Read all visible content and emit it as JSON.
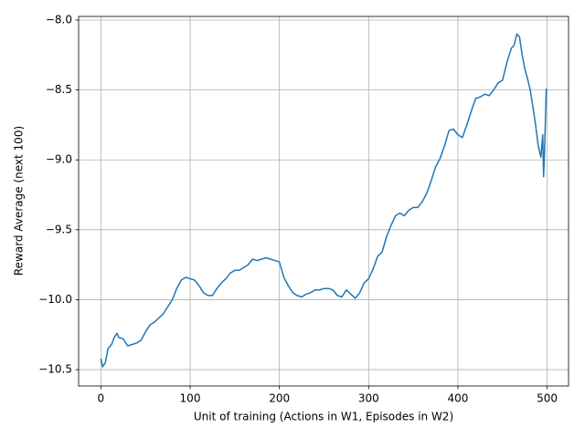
{
  "chart_data": {
    "type": "line",
    "xlabel": "Unit of training (Actions in W1, Episodes in W2)",
    "ylabel": "Reward Average (next 100)",
    "x": [
      0,
      2,
      5,
      8,
      12,
      15,
      18,
      20,
      25,
      28,
      30,
      35,
      40,
      45,
      50,
      55,
      60,
      65,
      70,
      75,
      80,
      85,
      90,
      95,
      100,
      105,
      110,
      115,
      120,
      125,
      130,
      135,
      140,
      145,
      150,
      155,
      160,
      165,
      170,
      175,
      180,
      185,
      190,
      195,
      200,
      205,
      210,
      215,
      220,
      225,
      230,
      235,
      240,
      245,
      250,
      255,
      260,
      265,
      270,
      275,
      280,
      285,
      290,
      295,
      300,
      305,
      310,
      315,
      320,
      325,
      330,
      335,
      340,
      345,
      350,
      355,
      360,
      365,
      370,
      375,
      380,
      385,
      390,
      395,
      400,
      405,
      410,
      415,
      420,
      425,
      430,
      435,
      440,
      445,
      450,
      455,
      460,
      463,
      466,
      469,
      472,
      475,
      478,
      481,
      484,
      487,
      490,
      493,
      495,
      496,
      497,
      499
    ],
    "series": [
      {
        "color": "#1f77b4",
        "values": [
          -10.42,
          -10.48,
          -10.45,
          -10.35,
          -10.32,
          -10.27,
          -10.24,
          -10.27,
          -10.28,
          -10.31,
          -10.33,
          -10.32,
          -10.31,
          -10.29,
          -10.23,
          -10.18,
          -10.16,
          -10.13,
          -10.1,
          -10.05,
          -10.0,
          -9.92,
          -9.86,
          -9.84,
          -9.85,
          -9.86,
          -9.9,
          -9.95,
          -9.97,
          -9.97,
          -9.92,
          -9.88,
          -9.85,
          -9.81,
          -9.79,
          -9.79,
          -9.77,
          -9.75,
          -9.71,
          -9.72,
          -9.71,
          -9.7,
          -9.71,
          -9.72,
          -9.73,
          -9.84,
          -9.9,
          -9.95,
          -9.97,
          -9.98,
          -9.96,
          -9.95,
          -9.93,
          -9.93,
          -9.92,
          -9.92,
          -9.93,
          -9.97,
          -9.98,
          -9.93,
          -9.96,
          -9.99,
          -9.95,
          -9.88,
          -9.85,
          -9.78,
          -9.69,
          -9.66,
          -9.55,
          -9.47,
          -9.4,
          -9.38,
          -9.4,
          -9.36,
          -9.34,
          -9.34,
          -9.3,
          -9.24,
          -9.15,
          -9.05,
          -8.99,
          -8.9,
          -8.79,
          -8.78,
          -8.82,
          -8.84,
          -8.75,
          -8.65,
          -8.56,
          -8.55,
          -8.53,
          -8.54,
          -8.5,
          -8.45,
          -8.43,
          -8.3,
          -8.2,
          -8.18,
          -8.1,
          -8.12,
          -8.25,
          -8.35,
          -8.42,
          -8.5,
          -8.62,
          -8.75,
          -8.9,
          -8.98,
          -8.82,
          -9.12,
          -8.95,
          -8.49
        ]
      }
    ],
    "xlim": [
      -24.95,
      523.95
    ],
    "xticks": [
      0,
      100,
      200,
      300,
      400,
      500
    ],
    "ylim": [
      -10.617,
      -7.974
    ],
    "yticks": [
      {
        "value": -10.5,
        "label": "−10.5"
      },
      {
        "value": -10.0,
        "label": "−10.0"
      },
      {
        "value": -9.5,
        "label": "−9.5"
      },
      {
        "value": -9.0,
        "label": "−9.0"
      },
      {
        "value": -8.5,
        "label": "−8.5"
      },
      {
        "value": -8.0,
        "label": "−8.0"
      }
    ],
    "grid": true
  }
}
